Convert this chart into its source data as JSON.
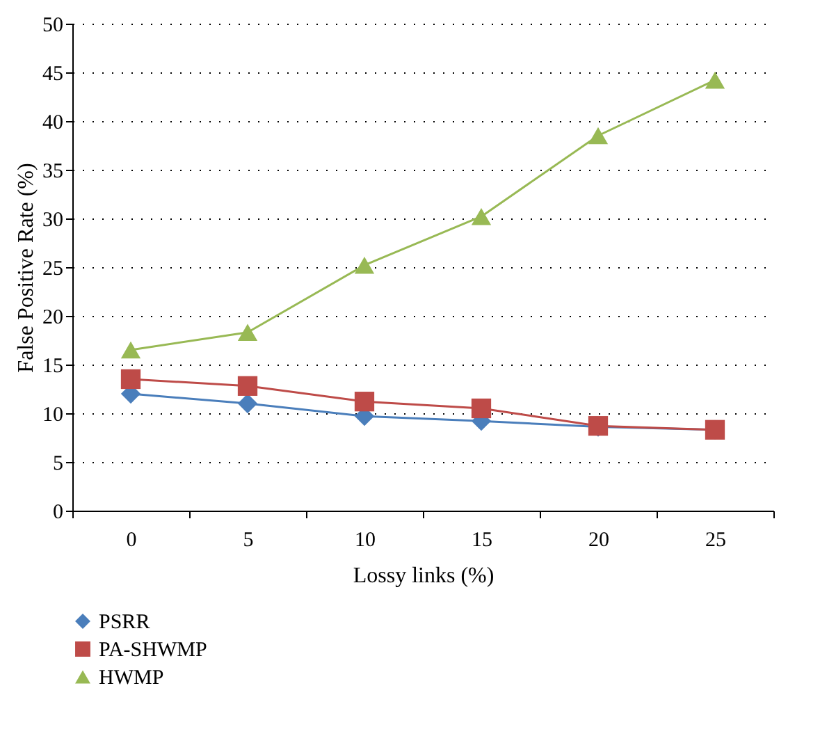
{
  "chart_data": {
    "type": "line",
    "xlabel": "Lossy links (%)",
    "ylabel": "False Positive Rate (%)",
    "categories": [
      "0",
      "5",
      "10",
      "15",
      "20",
      "25"
    ],
    "series": [
      {
        "name": "PSRR",
        "color": "#4a7ebb",
        "marker": "diamond",
        "values": [
          12,
          11,
          9.7,
          9.2,
          8.6,
          8.3
        ]
      },
      {
        "name": "PA-SHWMP",
        "color": "#be4b48",
        "marker": "square",
        "values": [
          13.5,
          12.8,
          11.2,
          10.5,
          8.7,
          8.3
        ]
      },
      {
        "name": "HWMP",
        "color": "#98b954",
        "marker": "triangle",
        "values": [
          16.5,
          18.3,
          25.2,
          30.2,
          38.5,
          44.2
        ]
      }
    ],
    "ylim": [
      0,
      50
    ],
    "yticks": [
      0,
      5,
      10,
      15,
      20,
      25,
      30,
      35,
      40,
      45,
      50
    ],
    "grid": "y",
    "legend": "bottom left",
    "line_style": "solid"
  }
}
